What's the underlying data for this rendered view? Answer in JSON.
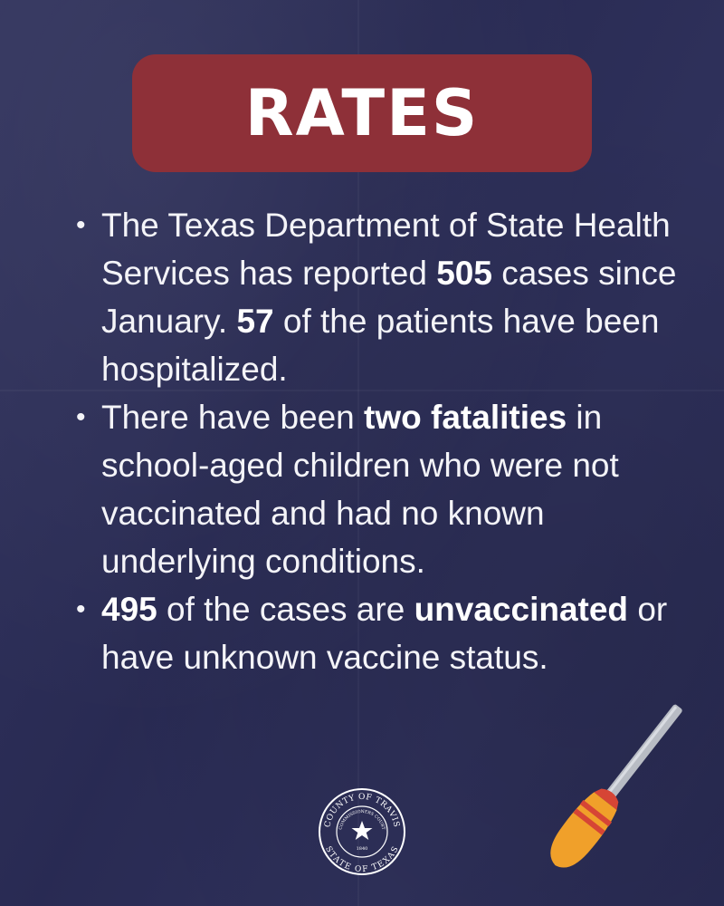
{
  "title": "RATES",
  "bullets": [
    {
      "t1": "The Texas Department of State Health Services has reported ",
      "b1": "505",
      "t2": " cases since January. ",
      "b2": "57",
      "t3": " of the patients have been hospitalized."
    },
    {
      "t1": "There have been ",
      "b1": "two fatalities",
      "t2": " in school-aged children who were not vaccinated and had no known underlying conditions."
    },
    {
      "b1": "495",
      "t1": " of the cases are ",
      "b2": "unvaccinated",
      "t2": " or have unknown vaccine status."
    }
  ],
  "seal": {
    "outer_top": "COUNTY OF TRAVIS",
    "outer_bottom": "STATE OF TEXAS",
    "inner": "COMMISSIONERS COURT",
    "year": "1840"
  },
  "icons": [
    "county-seal-icon",
    "screwdriver-icon"
  ],
  "colors": {
    "background": "#2b2d58",
    "title_box": "#8e3038",
    "text": "#ffffff",
    "handle": "#f0a02a",
    "handle_stripe": "#d64535",
    "shaft": "#b8bcc4"
  }
}
